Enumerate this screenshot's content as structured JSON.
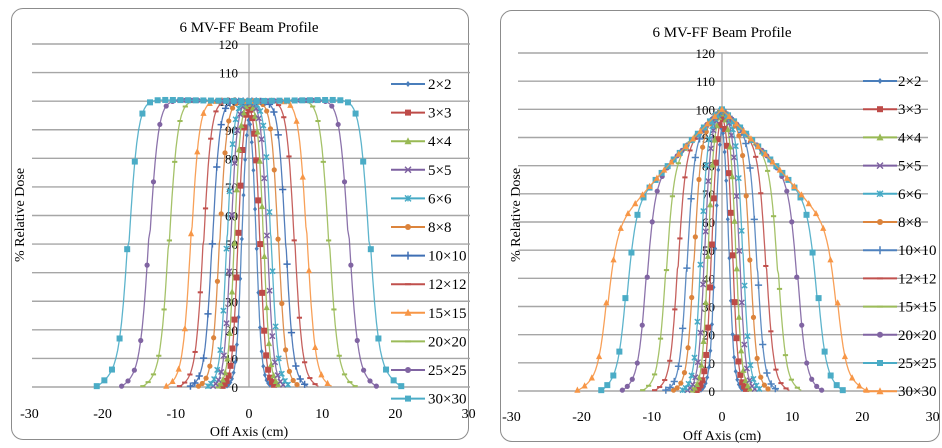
{
  "chart_data": [
    {
      "type": "line",
      "title": "6 MV-FF Beam Profile",
      "xlabel": "Off Axis (cm)",
      "ylabel": "% Relative Dose",
      "xlim": [
        -30,
        30
      ],
      "ylim": [
        0,
        120
      ],
      "xticks": [
        "-30",
        "-20",
        "-10",
        "0",
        "10",
        "20",
        "30"
      ],
      "yticks": [
        "0",
        "10",
        "20",
        "30",
        "40",
        "50",
        "60",
        "70",
        "80",
        "90",
        "100",
        "110",
        "120"
      ],
      "grid": true,
      "legend_position": "right",
      "beam_type": "flat",
      "series": [
        {
          "name": "2×2",
          "color": "#4a7ebb",
          "marker": "diamond",
          "half_width": 1.0,
          "penumbra": 0.35,
          "tail_end": 3.0,
          "tail_dose": 2
        },
        {
          "name": "3×3",
          "color": "#be4b48",
          "marker": "square",
          "half_width": 1.5,
          "penumbra": 0.38,
          "tail_end": 3.6,
          "tail_dose": 2
        },
        {
          "name": "4×4",
          "color": "#98b954",
          "marker": "triangle",
          "half_width": 2.0,
          "penumbra": 0.4,
          "tail_end": 4.2,
          "tail_dose": 2
        },
        {
          "name": "5×5",
          "color": "#7d60a0",
          "marker": "x",
          "half_width": 2.5,
          "penumbra": 0.42,
          "tail_end": 4.9,
          "tail_dose": 2
        },
        {
          "name": "6×6",
          "color": "#46aac5",
          "marker": "star",
          "half_width": 3.0,
          "penumbra": 0.44,
          "tail_end": 5.6,
          "tail_dose": 3
        },
        {
          "name": "8×8",
          "color": "#dc843c",
          "marker": "circle",
          "half_width": 4.0,
          "penumbra": 0.48,
          "tail_end": 6.9,
          "tail_dose": 3
        },
        {
          "name": "10×10",
          "color": "#3f6fb4",
          "marker": "plus",
          "half_width": 5.0,
          "penumbra": 0.5,
          "tail_end": 8.0,
          "tail_dose": 3
        },
        {
          "name": "12×12",
          "color": "#c0504d",
          "marker": "dash",
          "half_width": 6.2,
          "penumbra": 0.52,
          "tail_end": 9.5,
          "tail_dose": 4
        },
        {
          "name": "15×15",
          "color": "#f79646",
          "marker": "triangle",
          "half_width": 7.9,
          "penumbra": 0.55,
          "tail_end": 11.3,
          "tail_dose": 4
        },
        {
          "name": "20×20",
          "color": "#9bbb59",
          "marker": "dash",
          "half_width": 10.9,
          "penumbra": 0.58,
          "tail_end": 14.5,
          "tail_dose": 5
        },
        {
          "name": "25×25",
          "color": "#8064a2",
          "marker": "circle",
          "half_width": 13.6,
          "penumbra": 0.6,
          "tail_end": 17.4,
          "tail_dose": 6
        },
        {
          "name": "30×30",
          "color": "#4bacc6",
          "marker": "square",
          "half_width": 16.4,
          "penumbra": 0.62,
          "tail_end": 20.8,
          "tail_dose": 8
        }
      ]
    },
    {
      "type": "line",
      "title": "6 MV-FF Beam Profile",
      "xlabel": "Off Axis (cm)",
      "ylabel": "% Relative Dose",
      "xlim": [
        -30,
        30
      ],
      "ylim": [
        0,
        120
      ],
      "xticks": [
        "-30",
        "-20",
        "-10",
        "0",
        "10",
        "20",
        "30"
      ],
      "yticks": [
        "0",
        "10",
        "20",
        "30",
        "40",
        "50",
        "60",
        "70",
        "80",
        "90",
        "100",
        "110",
        "120"
      ],
      "grid": true,
      "legend_position": "right",
      "beam_type": "cone",
      "series": [
        {
          "name": "2×2",
          "color": "#4a7ebb",
          "marker": "diamond",
          "half_width": 1.0,
          "penumbra": 0.35,
          "tail_end": 3.0,
          "tail_dose": 2
        },
        {
          "name": "3×3",
          "color": "#be4b48",
          "marker": "square",
          "half_width": 1.5,
          "penumbra": 0.38,
          "tail_end": 3.6,
          "tail_dose": 2
        },
        {
          "name": "4×4",
          "color": "#98b954",
          "marker": "triangle",
          "half_width": 2.0,
          "penumbra": 0.4,
          "tail_end": 4.2,
          "tail_dose": 2
        },
        {
          "name": "5×5",
          "color": "#7d60a0",
          "marker": "x",
          "half_width": 2.5,
          "penumbra": 0.42,
          "tail_end": 4.9,
          "tail_dose": 2
        },
        {
          "name": "6×6",
          "color": "#46aac5",
          "marker": "star",
          "half_width": 3.0,
          "penumbra": 0.44,
          "tail_end": 5.6,
          "tail_dose": 3
        },
        {
          "name": "8×8",
          "color": "#dc843c",
          "marker": "circle",
          "half_width": 4.0,
          "penumbra": 0.48,
          "tail_end": 6.9,
          "tail_dose": 3
        },
        {
          "name": "10×10",
          "color": "#4f81bd",
          "marker": "plus",
          "half_width": 5.0,
          "penumbra": 0.5,
          "tail_end": 8.0,
          "tail_dose": 3
        },
        {
          "name": "12×12",
          "color": "#c0504d",
          "marker": "dash",
          "half_width": 6.3,
          "penumbra": 0.52,
          "tail_end": 9.6,
          "tail_dose": 4
        },
        {
          "name": "15×15",
          "color": "#9bbb59",
          "marker": "dash",
          "half_width": 8.0,
          "penumbra": 0.55,
          "tail_end": 11.3,
          "tail_dose": 4
        },
        {
          "name": "20×20",
          "color": "#8064a2",
          "marker": "circle",
          "half_width": 10.8,
          "penumbra": 0.58,
          "tail_end": 14.2,
          "tail_dose": 5
        },
        {
          "name": "25×25",
          "color": "#4bacc6",
          "marker": "square",
          "half_width": 13.6,
          "penumbra": 0.62,
          "tail_end": 17.2,
          "tail_dose": 6
        },
        {
          "name": "30×30",
          "color": "#f79646",
          "marker": "triangle",
          "half_width": 16.4,
          "penumbra": 0.65,
          "tail_end": 20.6,
          "tail_dose": 6
        }
      ]
    }
  ]
}
